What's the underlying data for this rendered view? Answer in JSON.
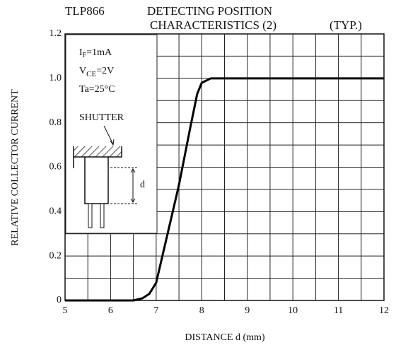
{
  "chart_data": {
    "type": "line",
    "title": "TLP866",
    "subtitle_lines": [
      "DETECTING POSITION",
      "CHARACTERISTICS (2)",
      "(TYP.)"
    ],
    "x_label": "DISTANCE  d   (mm)",
    "y_label": "RELATIVE COLLECTOR CURRENT",
    "x": [
      5,
      6.5,
      6.7,
      6.85,
      7.0,
      7.25,
      7.5,
      7.75,
      7.9,
      8.0,
      8.2,
      12
    ],
    "values": [
      0,
      0,
      0.01,
      0.03,
      0.08,
      0.3,
      0.52,
      0.78,
      0.93,
      0.98,
      1.0,
      1.0
    ],
    "color": "#000000",
    "xlim": [
      5,
      12
    ],
    "ylim": [
      0,
      1.2
    ],
    "xticks": [
      5,
      6,
      7,
      8,
      9,
      10,
      11,
      12
    ],
    "yticks": [
      0,
      0.2,
      0.4,
      0.6,
      0.8,
      {
        "value": 1,
        "label": "1.0"
      },
      1.2
    ],
    "x_minor_grid": [
      5.5,
      6.5,
      7.5,
      8.5,
      9.5,
      10.5,
      11.5
    ],
    "y_minor_grid": [
      0.1,
      0.3,
      0.5,
      0.7,
      0.9,
      1.1
    ],
    "grid": true,
    "conditions": [
      {
        "text": "I",
        "sub": "F",
        "tail": "=1mA"
      },
      {
        "text": "V",
        "sub": "CE",
        "tail": "=2V"
      },
      {
        "text": "Ta=25°C"
      }
    ],
    "inset_labels": {
      "shutter": "SHUTTER",
      "d": "d"
    }
  }
}
